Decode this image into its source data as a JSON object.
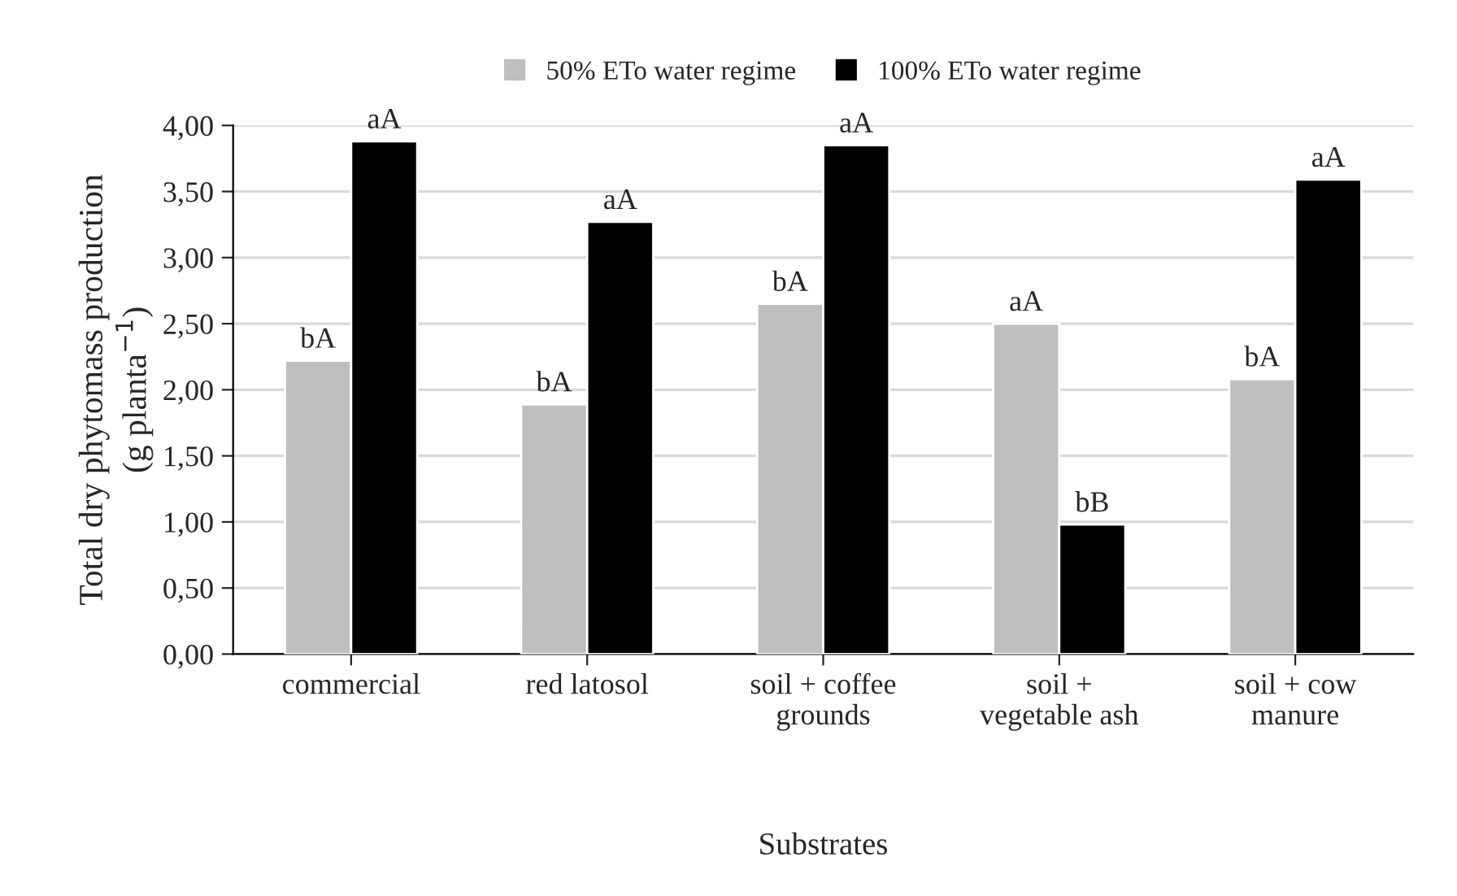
{
  "chart_data": {
    "type": "bar",
    "xlabel": "Substrates",
    "ylabel": "Total dry phytomass production\n(g planta$^{−1}$)",
    "categories": [
      "commercial",
      "red latosol",
      "soil + coffee\ngrounds",
      "soil +\nvegetable ash",
      "soil + cow\nmanure"
    ],
    "series": [
      {
        "name": "50% ETo water regime",
        "color": "#bfbfbf",
        "values": [
          2.22,
          1.89,
          2.65,
          2.5,
          2.08
        ],
        "value_labels": [
          "bA",
          "bA",
          "bA",
          "aA",
          "bA"
        ]
      },
      {
        "name": "100% ETo water regime",
        "color": "#000000",
        "values": [
          3.88,
          3.27,
          3.85,
          0.98,
          3.59
        ],
        "value_labels": [
          "aA",
          "aA",
          "aA",
          "bB",
          "aA"
        ]
      }
    ],
    "ylim": [
      0,
      4
    ],
    "yticks": [
      {
        "value": 0,
        "label": "0,00"
      },
      {
        "value": 0.5,
        "label": "0,50"
      },
      {
        "value": 1,
        "label": "1,00"
      },
      {
        "value": 1.5,
        "label": "1,50"
      },
      {
        "value": 2,
        "label": "2,00"
      },
      {
        "value": 2.5,
        "label": "2,50"
      },
      {
        "value": 3,
        "label": "3,00"
      },
      {
        "value": 3.5,
        "label": "3,50"
      },
      {
        "value": 4,
        "label": "4,00"
      }
    ],
    "grid": "y",
    "legend": "top"
  }
}
